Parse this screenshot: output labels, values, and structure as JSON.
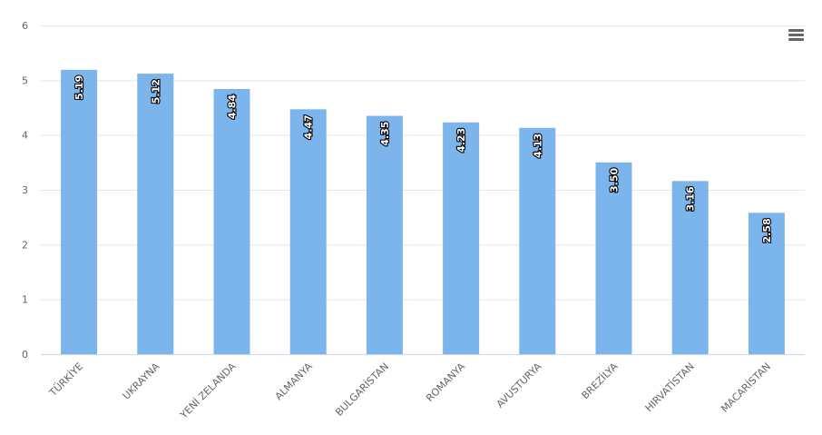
{
  "chart_data": {
    "type": "bar",
    "categories": [
      "TÜRKİYE",
      "UKRAYNA",
      "YENİ ZELANDA",
      "ALMANYA",
      "BULGARİSTAN",
      "ROMANYA",
      "AVUSTURYA",
      "BREZİLYA",
      "HIRVATİSTAN",
      "MACARİSTAN"
    ],
    "values": [
      5.19,
      5.12,
      4.84,
      4.47,
      4.35,
      4.23,
      4.13,
      3.5,
      3.16,
      2.58
    ],
    "data_labels": [
      "5.19",
      "5.12",
      "4.84",
      "4.47",
      "4.35",
      "4.23",
      "4.13",
      "3.50",
      "3.16",
      "2.58"
    ],
    "y_ticks": [
      "0",
      "1",
      "2",
      "3",
      "4",
      "5",
      "6"
    ],
    "ylim": [
      0,
      6
    ],
    "grid": true,
    "bar_color": "#7cb5ec",
    "legend": "none"
  },
  "toolbar": {
    "menu_icon": "hamburger-menu-icon"
  }
}
